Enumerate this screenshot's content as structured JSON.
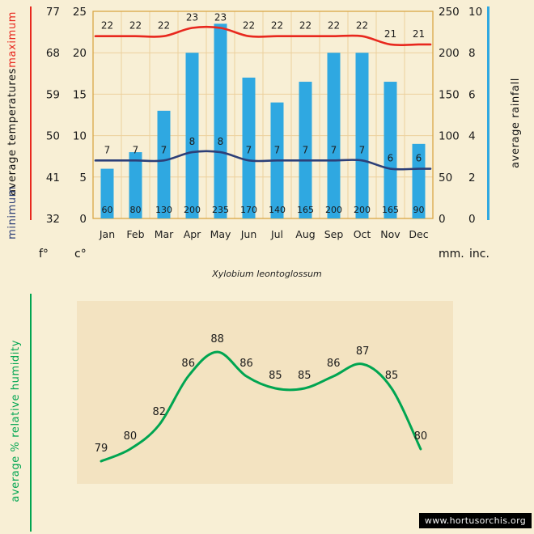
{
  "page": {
    "title": "Xylobium leontoglossum",
    "watermark": "www.hortusorchis.org"
  },
  "top_chart": {
    "left_axis_labels": {
      "maximum": "maximum",
      "middle": "average temperatures",
      "minimum": "minimum"
    },
    "right_axis_label": "average rainfall",
    "units": {
      "fahrenheit": "f°",
      "celsius": "c°",
      "millimeters": "mm.",
      "inches": "inc."
    }
  },
  "bottom_chart": {
    "left_label": "average % relative humidity"
  },
  "colors": {
    "background": "#f8efd5",
    "plot_background": "#f3e3c1",
    "grid": "#ecd09d",
    "border": "#d9a646",
    "max_temp": "#e8281e",
    "min_temp": "#2c3f78",
    "rainfall": "#2fa8e1",
    "humidity": "#00a551",
    "text": "#1b1b1b"
  },
  "chart_data": [
    {
      "type": "combo",
      "title": "",
      "categories": [
        "Jan",
        "Feb",
        "Mar",
        "Apr",
        "May",
        "Jun",
        "Jul",
        "Aug",
        "Sep",
        "Oct",
        "Nov",
        "Dec"
      ],
      "series": [
        {
          "key": "max-temp",
          "name": "maximum average temperature",
          "type": "line",
          "unit": "°C",
          "color": "#e8281e",
          "values": [
            22,
            22,
            22,
            23,
            23,
            22,
            22,
            22,
            22,
            22,
            21,
            21
          ]
        },
        {
          "key": "min-temp",
          "name": "minimum average temperature",
          "type": "line",
          "unit": "°C",
          "color": "#2c3f78",
          "values": [
            7,
            7,
            7,
            8,
            8,
            7,
            7,
            7,
            7,
            7,
            6,
            6
          ]
        },
        {
          "key": "rainfall",
          "name": "average rainfall",
          "type": "bar",
          "unit": "mm",
          "color": "#2fa8e1",
          "values": [
            60,
            80,
            130,
            200,
            235,
            170,
            140,
            165,
            200,
            200,
            165,
            90
          ]
        }
      ],
      "axes": {
        "fahrenheit_ticks": [
          32,
          41,
          50,
          59,
          68,
          77
        ],
        "celsius_ticks": [
          0,
          5,
          10,
          15,
          20,
          25
        ],
        "mm_ticks": [
          0,
          50,
          100,
          150,
          200,
          250
        ],
        "inch_ticks": [
          0,
          2,
          4,
          6,
          8,
          10
        ],
        "celsius_range": [
          0,
          25
        ],
        "mm_range": [
          0,
          250
        ]
      },
      "grid": true,
      "legend_position": "none"
    },
    {
      "type": "line",
      "title": "average % relative humidity",
      "color": "#00a551",
      "values": [
        79,
        80,
        82,
        86,
        88,
        86,
        85,
        85,
        86,
        87,
        85,
        80
      ],
      "point_labels": [
        79,
        80,
        82,
        86,
        88,
        86,
        85,
        85,
        86,
        87,
        85,
        80
      ],
      "grid": false,
      "legend_position": "none"
    }
  ]
}
